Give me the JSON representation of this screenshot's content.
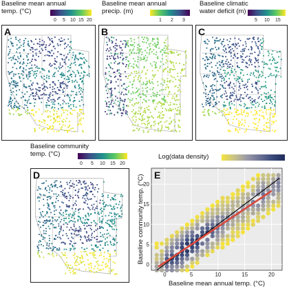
{
  "legends": {
    "temp": {
      "title": "Baseline mean annual temp. (°C)",
      "ticks": [
        "0",
        "5",
        "10",
        "15",
        "20"
      ]
    },
    "precip": {
      "title": "Baseline mean annual precip. (m)",
      "ticks": [
        "1",
        "2",
        "3"
      ]
    },
    "cwd": {
      "title": "Baseline climatic water deficit (m)",
      "ticks": [
        "5",
        "10",
        "15"
      ]
    },
    "community": {
      "title": "Baseline community temp. (°C)",
      "ticks": [
        "0",
        "5",
        "10",
        "15",
        "20"
      ]
    },
    "density": {
      "title": "Log(data density)"
    }
  },
  "panels": {
    "a": {
      "letter": "A"
    },
    "b": {
      "letter": "B"
    },
    "c": {
      "letter": "C"
    },
    "d": {
      "letter": "D"
    },
    "e": {
      "letter": "E"
    }
  },
  "colors": {
    "viridis": [
      "#440154",
      "#3b528b",
      "#21908d",
      "#5dc963",
      "#fde725"
    ],
    "density": [
      "#f5e33c",
      "#c9c28a",
      "#9a9aa8",
      "#6d7396",
      "#3a4a7c",
      "#1f2c59"
    ],
    "fit_line": "#d9483b",
    "one_to_one": "#111111"
  },
  "chart_data": {
    "type": "hexbin",
    "title": "",
    "xlabel": "Baseline mean annual temp. (°C)",
    "ylabel": "Baseline community temp. (°C)",
    "xlim": [
      -2.5,
      22
    ],
    "ylim": [
      -1.5,
      24
    ],
    "xticks": [
      0,
      5,
      10,
      15,
      20
    ],
    "yticks": [
      0,
      5,
      10,
      15,
      20
    ],
    "xtick_labels": [
      "0",
      "5",
      "10",
      "15",
      "20"
    ],
    "ytick_labels": [
      "0",
      "5",
      "10",
      "15",
      "20"
    ],
    "grid": true,
    "lines": [
      {
        "kind": "1:1 reference",
        "x": [
          -1.5,
          21.5
        ],
        "y": [
          -1.5,
          21.5
        ],
        "color": "#111111"
      },
      {
        "kind": "fitted regression",
        "x": [
          -1.2,
          20
        ],
        "y": [
          -0.6,
          18.3
        ],
        "color": "#d9483b"
      }
    ],
    "density_cloud": {
      "description_points": [
        [
          -1,
          0
        ],
        [
          0,
          1
        ],
        [
          1,
          2
        ],
        [
          2,
          3
        ],
        [
          3,
          4
        ],
        [
          4,
          5
        ],
        [
          5,
          6
        ],
        [
          6,
          7
        ],
        [
          7,
          8
        ],
        [
          8,
          9
        ],
        [
          9,
          10
        ],
        [
          10,
          11
        ],
        [
          11,
          12
        ],
        [
          12,
          13
        ],
        [
          13,
          14
        ],
        [
          14,
          14
        ],
        [
          15,
          15
        ],
        [
          16,
          16
        ],
        [
          17,
          17
        ],
        [
          18,
          18
        ],
        [
          19,
          19
        ],
        [
          20,
          20
        ]
      ],
      "spread_y": 5
    }
  }
}
